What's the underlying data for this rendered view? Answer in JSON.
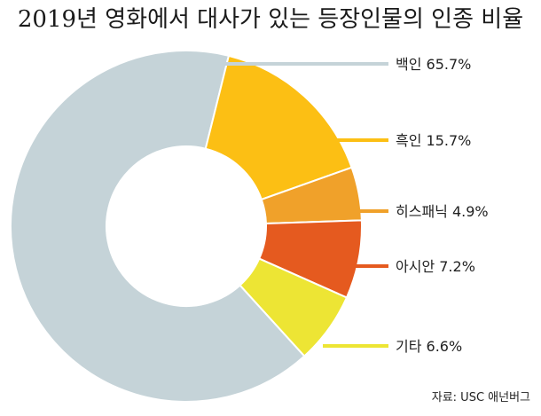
{
  "chart_data": {
    "type": "pie",
    "style": "donut",
    "title": "2019년 영화에서 대사가 있는 등장인물의 인종 비율",
    "source": "자료: USC 애넌버그",
    "slices": [
      {
        "label": "백인",
        "value": 65.7,
        "value_text": "65.7%",
        "color": "#c5d3d8"
      },
      {
        "label": "흑인",
        "value": 15.7,
        "value_text": "15.7%",
        "color": "#fcbf14"
      },
      {
        "label": "히스패닉",
        "value": 4.9,
        "value_text": "4.9%",
        "color": "#f0a12a"
      },
      {
        "label": "아시안",
        "value": 7.2,
        "value_text": "7.2%",
        "color": "#e55a1f"
      },
      {
        "label": "기타",
        "value": 6.6,
        "value_text": "6.6%",
        "color": "#ede534"
      }
    ]
  }
}
